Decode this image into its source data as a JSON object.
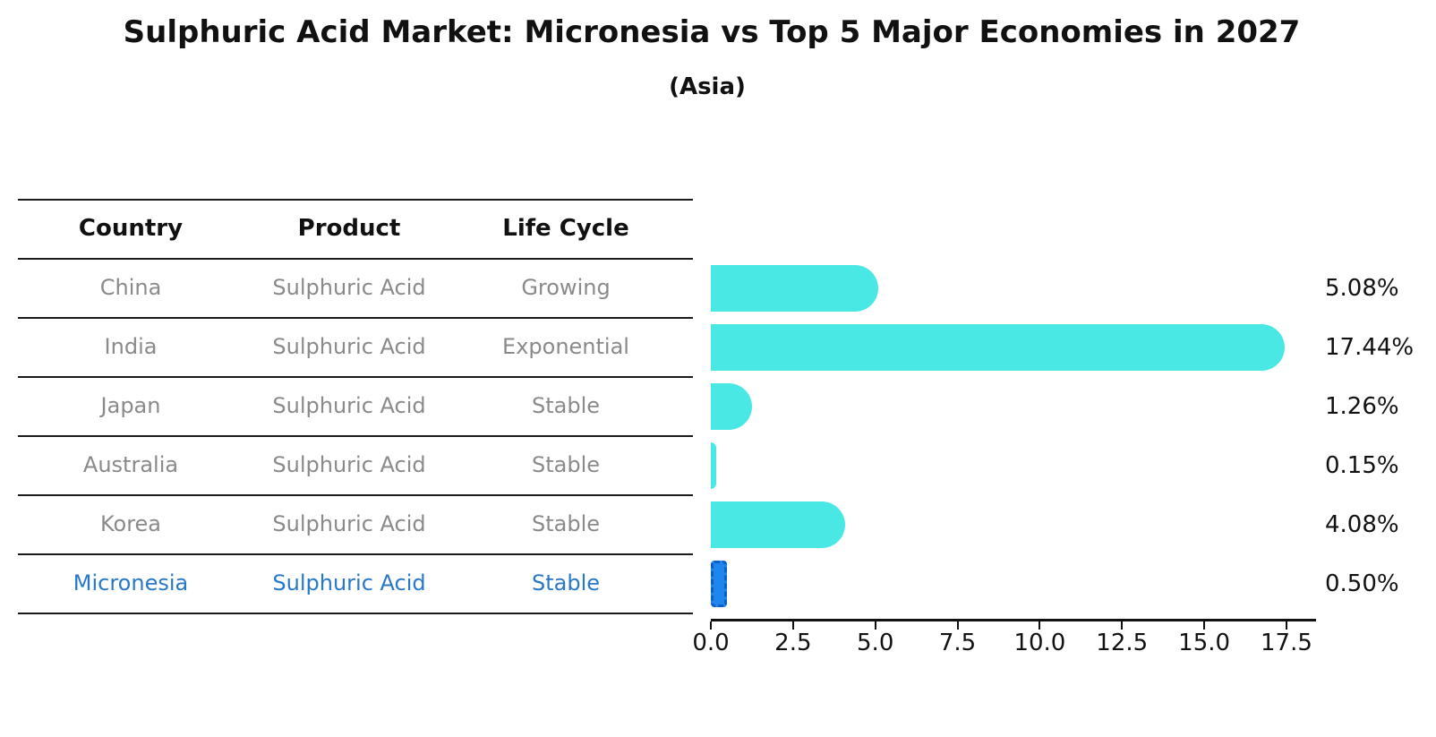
{
  "title": "Sulphuric Acid Market: Micronesia vs Top 5 Major Economies in 2027",
  "subtitle": "(Asia)",
  "colors": {
    "bar_fill": "#4ae8e4",
    "highlight_bar_fill": "#1e86ec",
    "highlight_bar_edge": "#0d5fc4",
    "highlight_text": "#2878c8",
    "table_text": "#8a8a8a",
    "heading_text": "#111111"
  },
  "table": {
    "headers": [
      "Country",
      "Product",
      "Life Cycle"
    ],
    "rows": [
      {
        "country": "China",
        "product": "Sulphuric Acid",
        "life_cycle": "Growing",
        "highlight": false
      },
      {
        "country": "India",
        "product": "Sulphuric Acid",
        "life_cycle": "Exponential",
        "highlight": false
      },
      {
        "country": "Japan",
        "product": "Sulphuric Acid",
        "life_cycle": "Stable",
        "highlight": false
      },
      {
        "country": "Australia",
        "product": "Sulphuric Acid",
        "life_cycle": "Stable",
        "highlight": false
      },
      {
        "country": "Korea",
        "product": "Sulphuric Acid",
        "life_cycle": "Stable",
        "highlight": false
      },
      {
        "country": "Micronesia",
        "product": "Sulphuric Acid",
        "life_cycle": "Stable",
        "highlight": true
      }
    ]
  },
  "chart_data": {
    "type": "bar",
    "orientation": "horizontal",
    "title": "Sulphuric Acid Market: Micronesia vs Top 5 Major Economies in 2027",
    "subtitle": "(Asia)",
    "categories": [
      "China",
      "India",
      "Japan",
      "Australia",
      "Korea",
      "Micronesia"
    ],
    "values": [
      5.08,
      17.44,
      1.26,
      0.15,
      4.08,
      0.5
    ],
    "value_labels": [
      "5.08%",
      "17.44%",
      "1.26%",
      "0.15%",
      "4.08%",
      "0.50%"
    ],
    "highlight_index": 5,
    "xlim": [
      0,
      18.5
    ],
    "x_ticks": [
      0.0,
      2.5,
      5.0,
      7.5,
      10.0,
      12.5,
      15.0,
      17.5
    ],
    "x_tick_labels": [
      "0.0",
      "2.5",
      "5.0",
      "7.5",
      "10.0",
      "12.5",
      "15.0",
      "17.5"
    ],
    "grid": false,
    "legend": false
  }
}
